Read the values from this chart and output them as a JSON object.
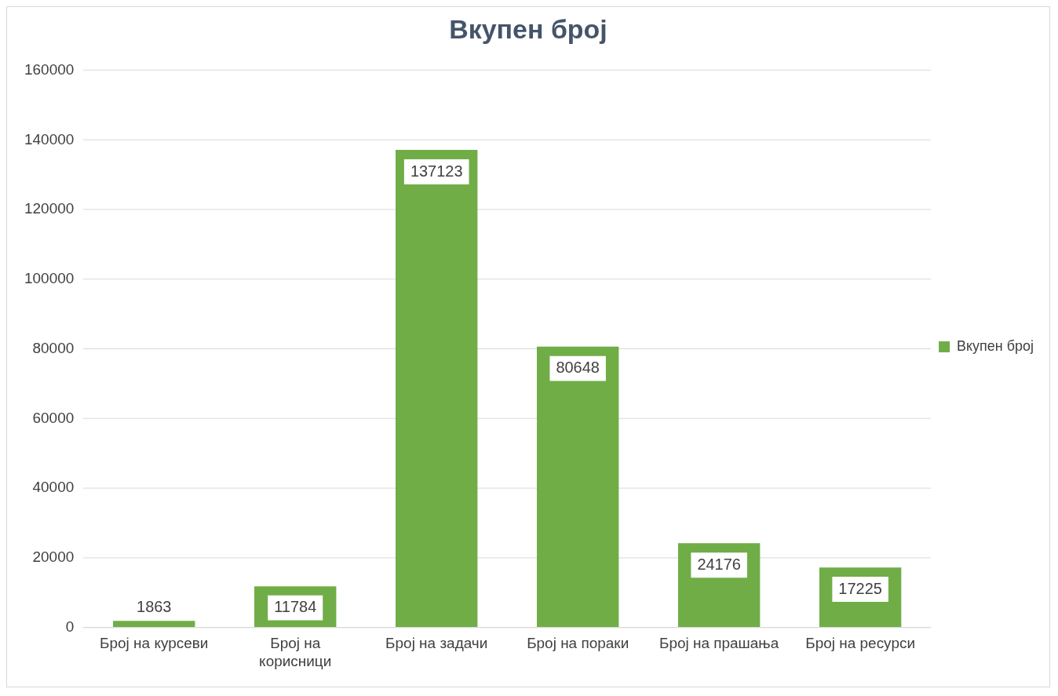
{
  "chart_data": {
    "type": "bar",
    "title": "Вкупен број",
    "categories": [
      "Број на курсеви",
      "Број на корисници",
      "Број на задачи",
      "Број на пораки",
      "Број на прашања",
      "Број на ресурси"
    ],
    "series": [
      {
        "name": "Вкупен број",
        "color": "#70ad47",
        "values": [
          1863,
          11784,
          137123,
          80648,
          24176,
          17225
        ]
      }
    ],
    "ylim": [
      0,
      160000
    ],
    "yticks": [
      0,
      20000,
      40000,
      60000,
      80000,
      100000,
      120000,
      140000,
      160000
    ],
    "grid": "y",
    "legend": "right",
    "data_labels": true
  }
}
